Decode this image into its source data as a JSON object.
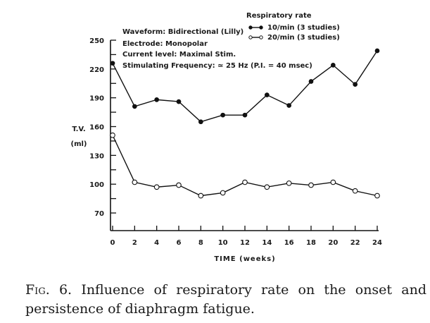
{
  "chart_data": {
    "type": "line",
    "ylabel": "T.V. (ml)",
    "ylabel_lines": [
      "T.V.",
      "(ml)"
    ],
    "xlabel": "TIME (weeks)",
    "x": [
      0,
      2,
      4,
      6,
      8,
      10,
      12,
      14,
      16,
      18,
      20,
      22,
      24
    ],
    "yticks": [
      70,
      100,
      130,
      160,
      190,
      220,
      250
    ],
    "ylim": [
      55,
      250
    ],
    "xlim": [
      0,
      24
    ],
    "legend_title": "Respiratory rate",
    "legend_position": "top-right",
    "series": [
      {
        "name": "10/min (3 studies)",
        "marker": "filled",
        "values": [
          226,
          181,
          188,
          186,
          165,
          172,
          172,
          193,
          182,
          207,
          224,
          204,
          239
        ]
      },
      {
        "name": "20/min (3 studies)",
        "marker": "open",
        "values": [
          151,
          102,
          97,
          99,
          88,
          91,
          102,
          97,
          101,
          99,
          102,
          93,
          88
        ]
      }
    ],
    "annotations": [
      "Waveform: Bidirectional (Lilly)",
      "Electrode: Monopolar",
      "Current level: Maximal Stim.",
      "Stimulating Frequency: ≃ 25 Hz (P.I. = 40 msec)"
    ]
  },
  "caption": {
    "label": "Fig. 6.",
    "text": "Influence of respiratory rate on the onset and persistence of diaphragm fatigue."
  }
}
